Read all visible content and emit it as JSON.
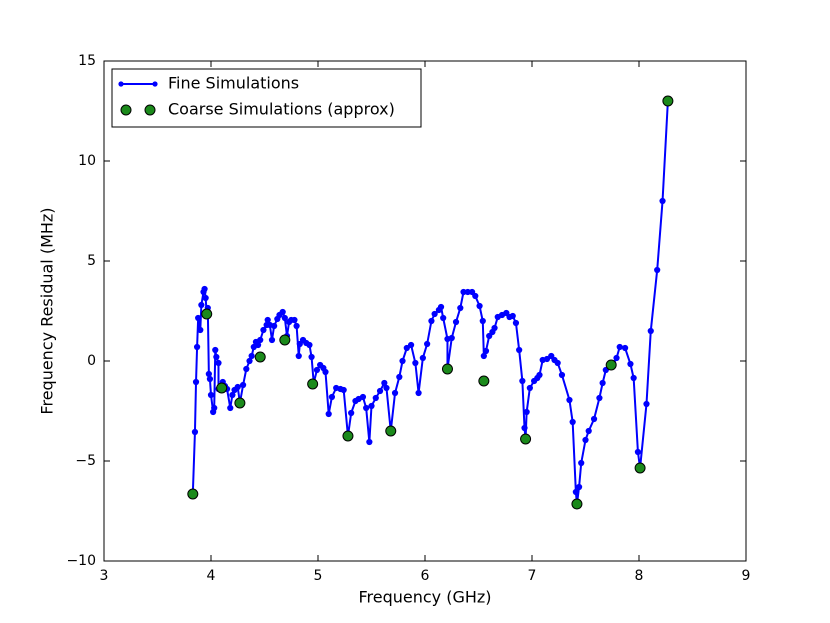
{
  "chart_data": {
    "type": "line",
    "xlabel": "Frequency (GHz)",
    "ylabel": "Frequency Residual (MHz)",
    "xlim": [
      3,
      9
    ],
    "ylim": [
      -10,
      15
    ],
    "xticks": [
      3,
      4,
      5,
      6,
      7,
      8,
      9
    ],
    "yticks": [
      {
        "value": -10,
        "label": "−10"
      },
      {
        "value": -5,
        "label": "−5"
      },
      0,
      5,
      10,
      15
    ],
    "legend": "upper left",
    "series": [
      {
        "name": "Fine Simulations",
        "color": "#0000ff",
        "type": "line",
        "x": [
          3.83,
          3.85,
          3.86,
          3.87,
          3.88,
          3.9,
          3.91,
          3.93,
          3.94,
          3.95,
          3.96,
          3.97,
          3.98,
          3.99,
          4.0,
          4.02,
          4.03,
          4.04,
          4.05,
          4.07,
          4.07,
          4.09,
          4.11,
          4.13,
          4.15,
          4.18,
          4.2,
          4.22,
          4.25,
          4.27,
          4.3,
          4.33,
          4.36,
          4.38,
          4.4,
          4.42,
          4.44,
          4.46,
          4.49,
          4.52,
          4.53,
          4.55,
          4.57,
          4.59,
          4.62,
          4.64,
          4.67,
          4.69,
          4.71,
          4.73,
          4.75,
          4.78,
          4.8,
          4.82,
          4.83,
          4.86,
          4.89,
          4.92,
          4.94,
          4.96,
          4.99,
          5.02,
          5.05,
          5.07,
          5.1,
          5.13,
          5.17,
          5.21,
          5.24,
          5.28,
          5.31,
          5.35,
          5.38,
          5.42,
          5.45,
          5.48,
          5.5,
          5.54,
          5.58,
          5.62,
          5.64,
          5.68,
          5.72,
          5.76,
          5.79,
          5.83,
          5.87,
          5.91,
          5.94,
          5.98,
          6.02,
          6.06,
          6.09,
          6.13,
          6.15,
          6.17,
          6.21,
          6.21,
          6.25,
          6.29,
          6.33,
          6.36,
          6.4,
          6.44,
          6.47,
          6.51,
          6.54,
          6.55,
          6.57,
          6.6,
          6.63,
          6.65,
          6.68,
          6.72,
          6.76,
          6.79,
          6.82,
          6.85,
          6.88,
          6.91,
          6.93,
          6.94,
          6.95,
          6.98,
          7.02,
          7.05,
          7.07,
          7.1,
          7.14,
          7.18,
          7.21,
          7.24,
          7.28,
          7.35,
          7.38,
          7.41,
          7.42,
          7.44,
          7.46,
          7.5,
          7.53,
          7.58,
          7.63,
          7.66,
          7.69,
          7.73,
          7.76,
          7.79,
          7.82,
          7.87,
          7.92,
          7.95,
          7.99,
          8.01,
          8.07,
          8.11,
          8.17,
          8.22,
          8.27
        ],
        "values": [
          -6.65,
          -3.55,
          -1.05,
          0.7,
          2.15,
          1.55,
          2.8,
          3.45,
          3.6,
          3.15,
          2.35,
          2.65,
          -0.65,
          -0.9,
          -1.7,
          -2.55,
          -2.35,
          0.55,
          0.2,
          -0.1,
          -1.4,
          -1.25,
          -1.05,
          -1.25,
          -1.4,
          -2.35,
          -1.7,
          -1.45,
          -1.3,
          -2.1,
          -1.2,
          -0.4,
          0.0,
          0.25,
          0.7,
          0.95,
          0.8,
          1.05,
          1.55,
          1.8,
          2.05,
          1.8,
          1.05,
          1.75,
          2.1,
          2.3,
          2.45,
          2.15,
          1.25,
          1.95,
          2.05,
          2.05,
          1.75,
          0.25,
          0.85,
          1.05,
          0.9,
          0.8,
          0.2,
          -1.1,
          -0.45,
          -0.2,
          -0.35,
          -0.55,
          -2.65,
          -1.8,
          -1.35,
          -1.4,
          -1.45,
          -3.75,
          -2.6,
          -2.0,
          -1.9,
          -1.8,
          -2.35,
          -4.05,
          -2.25,
          -1.85,
          -1.5,
          -1.1,
          -1.35,
          -3.5,
          -1.6,
          -0.8,
          0.0,
          0.65,
          0.8,
          -0.1,
          -1.6,
          0.15,
          0.85,
          2.0,
          2.35,
          2.55,
          2.7,
          2.15,
          1.1,
          -0.4,
          1.15,
          1.95,
          2.65,
          3.45,
          3.45,
          3.45,
          3.25,
          2.75,
          2.0,
          0.25,
          0.5,
          1.25,
          1.45,
          1.65,
          2.2,
          2.3,
          2.4,
          2.2,
          2.25,
          1.9,
          0.55,
          -1.0,
          -3.35,
          -3.9,
          -2.55,
          -1.35,
          -1.0,
          -0.85,
          -0.7,
          0.05,
          0.1,
          0.25,
          0.05,
          -0.1,
          -0.7,
          -1.95,
          -3.05,
          -6.55,
          -7.15,
          -6.3,
          -5.1,
          -3.95,
          -3.5,
          -2.9,
          -1.85,
          -1.1,
          -0.45,
          -0.2,
          -0.15,
          0.15,
          0.7,
          0.65,
          -0.15,
          -0.85,
          -4.55,
          -5.35,
          -2.15,
          1.5,
          4.55,
          8.0,
          13.0
        ]
      },
      {
        "name": "Coarse Simulations (approx)",
        "color": "#1b8a1b",
        "type": "scatter",
        "x": [
          3.83,
          3.96,
          4.1,
          4.27,
          4.46,
          4.69,
          4.95,
          5.28,
          5.68,
          6.21,
          6.55,
          6.94,
          7.42,
          7.74,
          8.01,
          8.27
        ],
        "values": [
          -6.65,
          2.35,
          -1.35,
          -2.1,
          0.2,
          1.05,
          -1.15,
          -3.75,
          -3.5,
          -0.4,
          -1.0,
          -3.9,
          -7.15,
          -0.2,
          -5.35,
          13.0
        ]
      }
    ]
  }
}
